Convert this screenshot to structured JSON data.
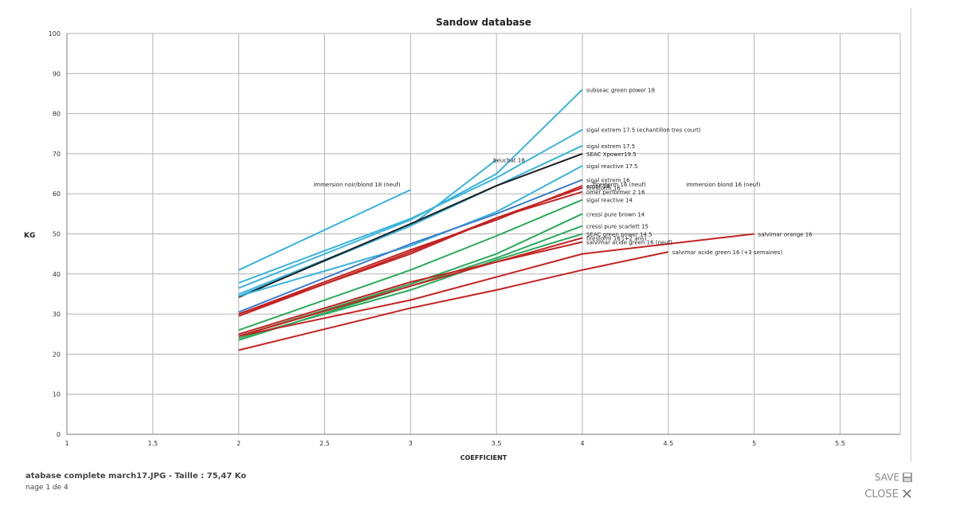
{
  "chart_data": {
    "type": "line",
    "title": "Sandow database",
    "xlabel": "COEFFICIENT",
    "ylabel": "KG",
    "xlim": [
      1,
      5.85
    ],
    "ylim": [
      0,
      100
    ],
    "xticks": [
      1,
      1.5,
      2,
      2.5,
      3,
      3.5,
      4,
      4.5,
      5,
      5.5
    ],
    "yticks": [
      0,
      10,
      20,
      30,
      40,
      50,
      60,
      70,
      80,
      90,
      100
    ],
    "grid": true,
    "legend": "none",
    "series": [
      {
        "name": "subseac green power 18",
        "color": "#3ab4dc",
        "points": [
          [
            2,
            36.5
          ],
          [
            3,
            53.5
          ],
          [
            3.5,
            65
          ],
          [
            4,
            86
          ]
        ]
      },
      {
        "name": "sigal extrem 17.5 (echantillon tres court)",
        "color": "#3ab4dc",
        "points": [
          [
            2,
            37.8
          ],
          [
            3,
            53.8
          ],
          [
            3.5,
            64
          ],
          [
            4,
            76
          ]
        ]
      },
      {
        "name": "immersion noir/blond 18 (neuf)",
        "color": "#3ab4dc",
        "points": [
          [
            2,
            41
          ],
          [
            3,
            61
          ]
        ]
      },
      {
        "name": "sigal extrem 17.5",
        "color": "#3ab4dc",
        "points": [
          [
            2,
            35
          ],
          [
            3,
            52
          ],
          [
            3.5,
            62
          ],
          [
            4,
            72
          ]
        ]
      },
      {
        "name": "beuchat 18",
        "color": "#3ab4dc",
        "points": [
          [
            2,
            34.5
          ],
          [
            3,
            52
          ],
          [
            3.5,
            68.5
          ]
        ]
      },
      {
        "name": "SEAC Xpower19.5",
        "color": "#1e1e1e",
        "points": [
          [
            2,
            34.2
          ],
          [
            3,
            52.5
          ],
          [
            3.5,
            62
          ],
          [
            4,
            70
          ]
        ]
      },
      {
        "name": "sigal reactive 17.5",
        "color": "#3ab4dc",
        "points": [
          [
            2,
            34.5
          ],
          [
            3,
            47
          ],
          [
            3.5,
            55.5
          ],
          [
            4,
            67
          ]
        ]
      },
      {
        "name": "sigal extrem 16",
        "color": "#3c7ccc",
        "points": [
          [
            2,
            30.5
          ],
          [
            3,
            47.5
          ],
          [
            3.5,
            55
          ],
          [
            4,
            63.5
          ]
        ]
      },
      {
        "name": "omer 18",
        "color": "#c42222",
        "points": [
          [
            2,
            30
          ],
          [
            3,
            46
          ],
          [
            3.5,
            53.5
          ],
          [
            4,
            62
          ]
        ]
      },
      {
        "name": "firestorm 16",
        "color": "#c42222",
        "points": [
          [
            2,
            29.5
          ],
          [
            3,
            45.5
          ],
          [
            3.5,
            54
          ],
          [
            4,
            61.5
          ]
        ]
      },
      {
        "name": "omer performer 2 16",
        "color": "#c42222",
        "points": [
          [
            2,
            30
          ],
          [
            3,
            45
          ],
          [
            3.5,
            54
          ],
          [
            4,
            60.5
          ]
        ]
      },
      {
        "name": "sigal reactive 14",
        "color": "#2aaa5a",
        "points": [
          [
            2,
            26
          ],
          [
            3,
            41
          ],
          [
            3.5,
            49.5
          ],
          [
            4,
            58.5
          ]
        ]
      },
      {
        "name": "cressi pure brown 14",
        "color": "#2aaa5a",
        "points": [
          [
            2,
            24.5
          ],
          [
            3,
            37.5
          ],
          [
            3.5,
            45
          ],
          [
            4,
            55
          ]
        ]
      },
      {
        "name": "cressi pure scarlett 15",
        "color": "#2aaa5a",
        "points": [
          [
            2,
            23.5
          ],
          [
            3,
            37
          ],
          [
            3.5,
            44
          ],
          [
            4,
            52
          ]
        ]
      },
      {
        "name": "SEAC green power 14.5",
        "color": "#2aaa5a",
        "points": [
          [
            2,
            24
          ],
          [
            3,
            36
          ],
          [
            3.5,
            43.5
          ],
          [
            4,
            50
          ]
        ]
      },
      {
        "name": "firestorm 16 (+2 ans)",
        "color": "#c42222",
        "points": [
          [
            2,
            25
          ],
          [
            3,
            38
          ],
          [
            3.5,
            43
          ],
          [
            4,
            49
          ]
        ]
      },
      {
        "name": "salvimar acide green 16 (neuf)",
        "color": "#c42222",
        "points": [
          [
            2,
            24.5
          ],
          [
            3,
            37
          ],
          [
            3.5,
            43
          ],
          [
            4,
            48
          ]
        ]
      },
      {
        "name": "salvimar acide green 16 (+3 semaines)",
        "color": "#c42222",
        "points": [
          [
            2,
            21
          ],
          [
            3,
            31.5
          ],
          [
            3.5,
            36
          ],
          [
            4,
            41
          ],
          [
            4.5,
            45.5
          ]
        ]
      },
      {
        "name": "salvimar orange 16",
        "color": "#c42222",
        "points": [
          [
            2,
            24.5
          ],
          [
            3,
            33.5
          ],
          [
            4,
            45
          ],
          [
            5,
            50
          ]
        ]
      }
    ],
    "annotations": [
      {
        "text": "firestorm 16 (neuf)",
        "x": 4.36,
        "y": 62
      },
      {
        "text": "immersion blond 16 (neuf)",
        "x": 4.9,
        "y": 62
      }
    ]
  },
  "footer": {
    "file_info": "atabase complete march17.JPG - Taille : 75,47 Ko",
    "page_info": "nage 1 de 4"
  },
  "actions": {
    "save_label": "SAVE",
    "close_label": "CLOSE"
  },
  "icons": {
    "save": "save-icon",
    "close": "close-icon"
  }
}
